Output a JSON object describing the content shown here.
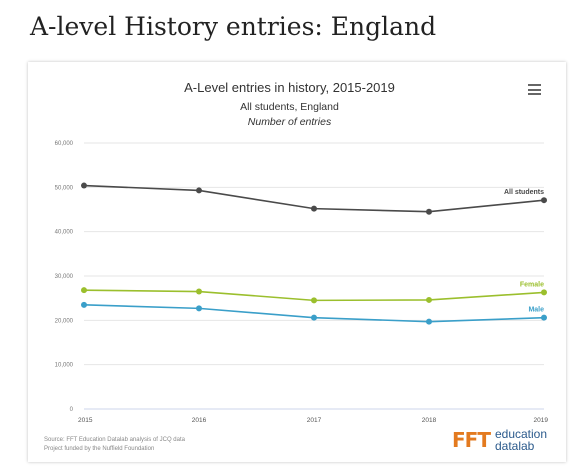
{
  "page": {
    "heading": "A-level History entries: England"
  },
  "chart": {
    "title": "A-Level entries in history, 2015-2019",
    "subtitle": "All students, England",
    "subtitle2": "Number of entries",
    "menu_icon": "hamburger-menu-icon"
  },
  "footer": {
    "source_line1": "Source: FFT Education Datalab analysis of JCQ data",
    "source_line2": "Project funded by the Nuffield Foundation",
    "logo_mark": "FFT",
    "logo_line1": "education",
    "logo_line2": "datalab"
  },
  "chart_data": {
    "type": "line",
    "title": "A-Level entries in history, 2015-2019",
    "subtitle": "All students, England",
    "ylabel": "Number of entries",
    "x": [
      "2015",
      "2016",
      "2017",
      "2018",
      "2019"
    ],
    "ylim": [
      0,
      60000
    ],
    "yticks": [
      "0",
      "10,000",
      "20,000",
      "30,000",
      "40,000",
      "50,000",
      "60,000"
    ],
    "grid": true,
    "series": [
      {
        "name": "All students",
        "values": [
          50400,
          49300,
          45200,
          44500,
          47100
        ],
        "color": "#4a4a4a"
      },
      {
        "name": "Female",
        "values": [
          26800,
          26500,
          24500,
          24600,
          26300
        ],
        "color": "#9bbf2d"
      },
      {
        "name": "Male",
        "values": [
          23500,
          22700,
          20600,
          19700,
          20600
        ],
        "color": "#3a9fc9"
      }
    ]
  }
}
